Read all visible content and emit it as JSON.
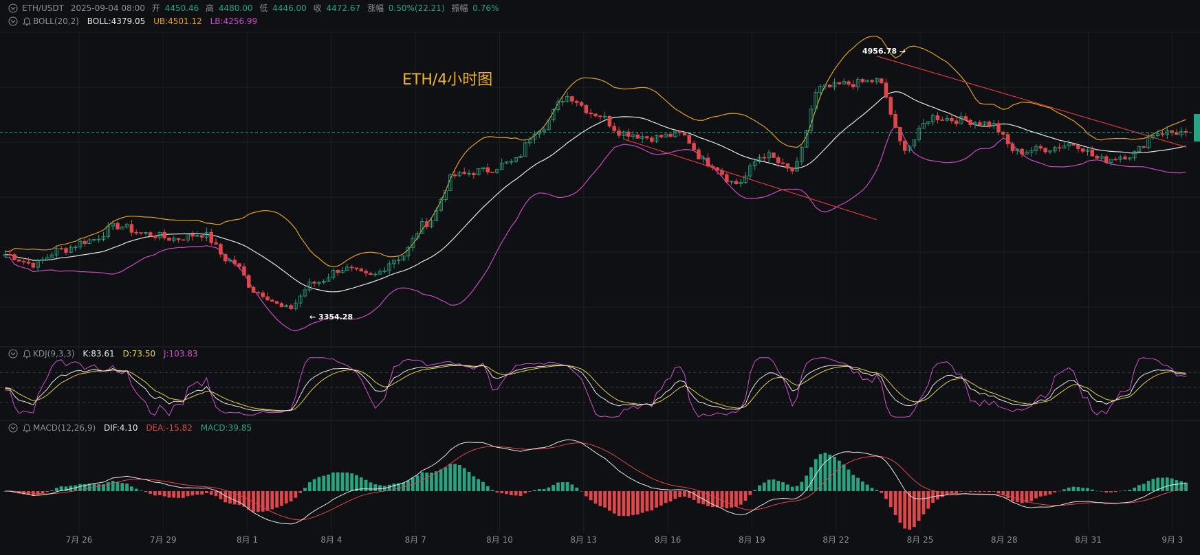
{
  "chart_data": [
    {
      "type": "candlestick",
      "title": "ETH/4小时图",
      "symbol": "ETH/USDT",
      "timeframe": "4h",
      "header": {
        "label_symbol": "ETH/USDT",
        "label_time": "2025-09-04 08:00",
        "label_open": "开",
        "open": "4450.46",
        "label_high": "高",
        "high": "4480.00",
        "label_low": "低",
        "low": "4446.00",
        "label_close": "收",
        "close": "4472.67",
        "label_change": "涨幅",
        "change": "0.50%(22.21)",
        "label_amplitude": "振幅",
        "amplitude": "0.76%"
      },
      "boll": {
        "label": "BOLL(20,2)",
        "mid": "BOLL:4379.05",
        "upper": "UB:4501.12",
        "lower": "LB:4256.99"
      },
      "annotations": {
        "high_label": "4956.78 →",
        "low_label": "← 3354.28"
      },
      "x_tick_labels": [
        "7月 26",
        "7月 29",
        "8月 1",
        "8月 4",
        "8月 7",
        "8月 10",
        "8月 13",
        "8月 16",
        "8月 19",
        "8月 22",
        "8月 25",
        "8月 28",
        "8月 31",
        "9月 3"
      ],
      "price_anchors": [
        [
          "2025-07-24",
          3700
        ],
        [
          "2025-07-25",
          3640
        ],
        [
          "2025-07-26",
          3730
        ],
        [
          "2025-07-27",
          3790
        ],
        [
          "2025-07-28",
          3880
        ],
        [
          "2025-07-29",
          3830
        ],
        [
          "2025-07-30",
          3800
        ],
        [
          "2025-07-31",
          3830
        ],
        [
          "2025-08-01",
          3660
        ],
        [
          "2025-08-02",
          3460
        ],
        [
          "2025-08-03",
          3354
        ],
        [
          "2025-08-04",
          3520
        ],
        [
          "2025-08-05",
          3610
        ],
        [
          "2025-08-06",
          3560
        ],
        [
          "2025-08-07",
          3680
        ],
        [
          "2025-08-08",
          3900
        ],
        [
          "2025-08-09",
          4200
        ],
        [
          "2025-08-10",
          4230
        ],
        [
          "2025-08-11",
          4280
        ],
        [
          "2025-08-12",
          4500
        ],
        [
          "2025-08-13",
          4700
        ],
        [
          "2025-08-14",
          4590
        ],
        [
          "2025-08-15",
          4470
        ],
        [
          "2025-08-16",
          4440
        ],
        [
          "2025-08-17",
          4460
        ],
        [
          "2025-08-18",
          4280
        ],
        [
          "2025-08-19",
          4150
        ],
        [
          "2025-08-20",
          4330
        ],
        [
          "2025-08-21",
          4230
        ],
        [
          "2025-08-22",
          4750
        ],
        [
          "2025-08-23",
          4780
        ],
        [
          "2025-08-24",
          4800
        ],
        [
          "2025-08-25",
          4380
        ],
        [
          "2025-08-26",
          4570
        ],
        [
          "2025-08-27",
          4550
        ],
        [
          "2025-08-28",
          4530
        ],
        [
          "2025-08-29",
          4350
        ],
        [
          "2025-08-30",
          4370
        ],
        [
          "2025-08-31",
          4400
        ],
        [
          "2025-09-01",
          4300
        ],
        [
          "2025-09-02",
          4330
        ],
        [
          "2025-09-03",
          4472
        ]
      ],
      "trendlines": [
        {
          "from": [
            "2025-08-15",
            4430
          ],
          "to": [
            "2025-08-24",
            3920
          ],
          "color": "#d93a3a"
        },
        {
          "from": [
            "2025-08-24",
            4956
          ],
          "to": [
            "2025-09-04",
            4380
          ],
          "color": "#d93a3a"
        }
      ],
      "last_price": 4472.67
    },
    {
      "type": "line",
      "indicator": "KDJ",
      "label": "KDJ(9,3,3)",
      "values": {
        "k": "K:83.61",
        "d": "D:73.50",
        "j": "J:103.83"
      },
      "levels": [
        20,
        50,
        80
      ],
      "colors": {
        "k": "#e8e8e8",
        "d": "#e8d23b",
        "j": "#d24fcf"
      }
    },
    {
      "type": "bar",
      "indicator": "MACD",
      "label": "MACD(12,26,9)",
      "values": {
        "dif": "DIF:4.10",
        "dea": "DEA:-15.82",
        "macd": "MACD:39.85"
      },
      "colors": {
        "dif": "#e8e8e8",
        "dea": "#e0474a",
        "hist_up": "#27a583",
        "hist_down": "#e0474a"
      }
    }
  ],
  "colors": {
    "background": "#0f1013",
    "grid": "#1c1e23",
    "up": "#27a583",
    "down": "#e0474a",
    "boll_mid": "#e8e8e8",
    "boll_upper": "#e5a21f",
    "boll_lower": "#c94ac6",
    "title": "#f0b429",
    "header_label": "#8a8f98",
    "header_value": "#27a583",
    "axis_text": "#8a8f98"
  }
}
